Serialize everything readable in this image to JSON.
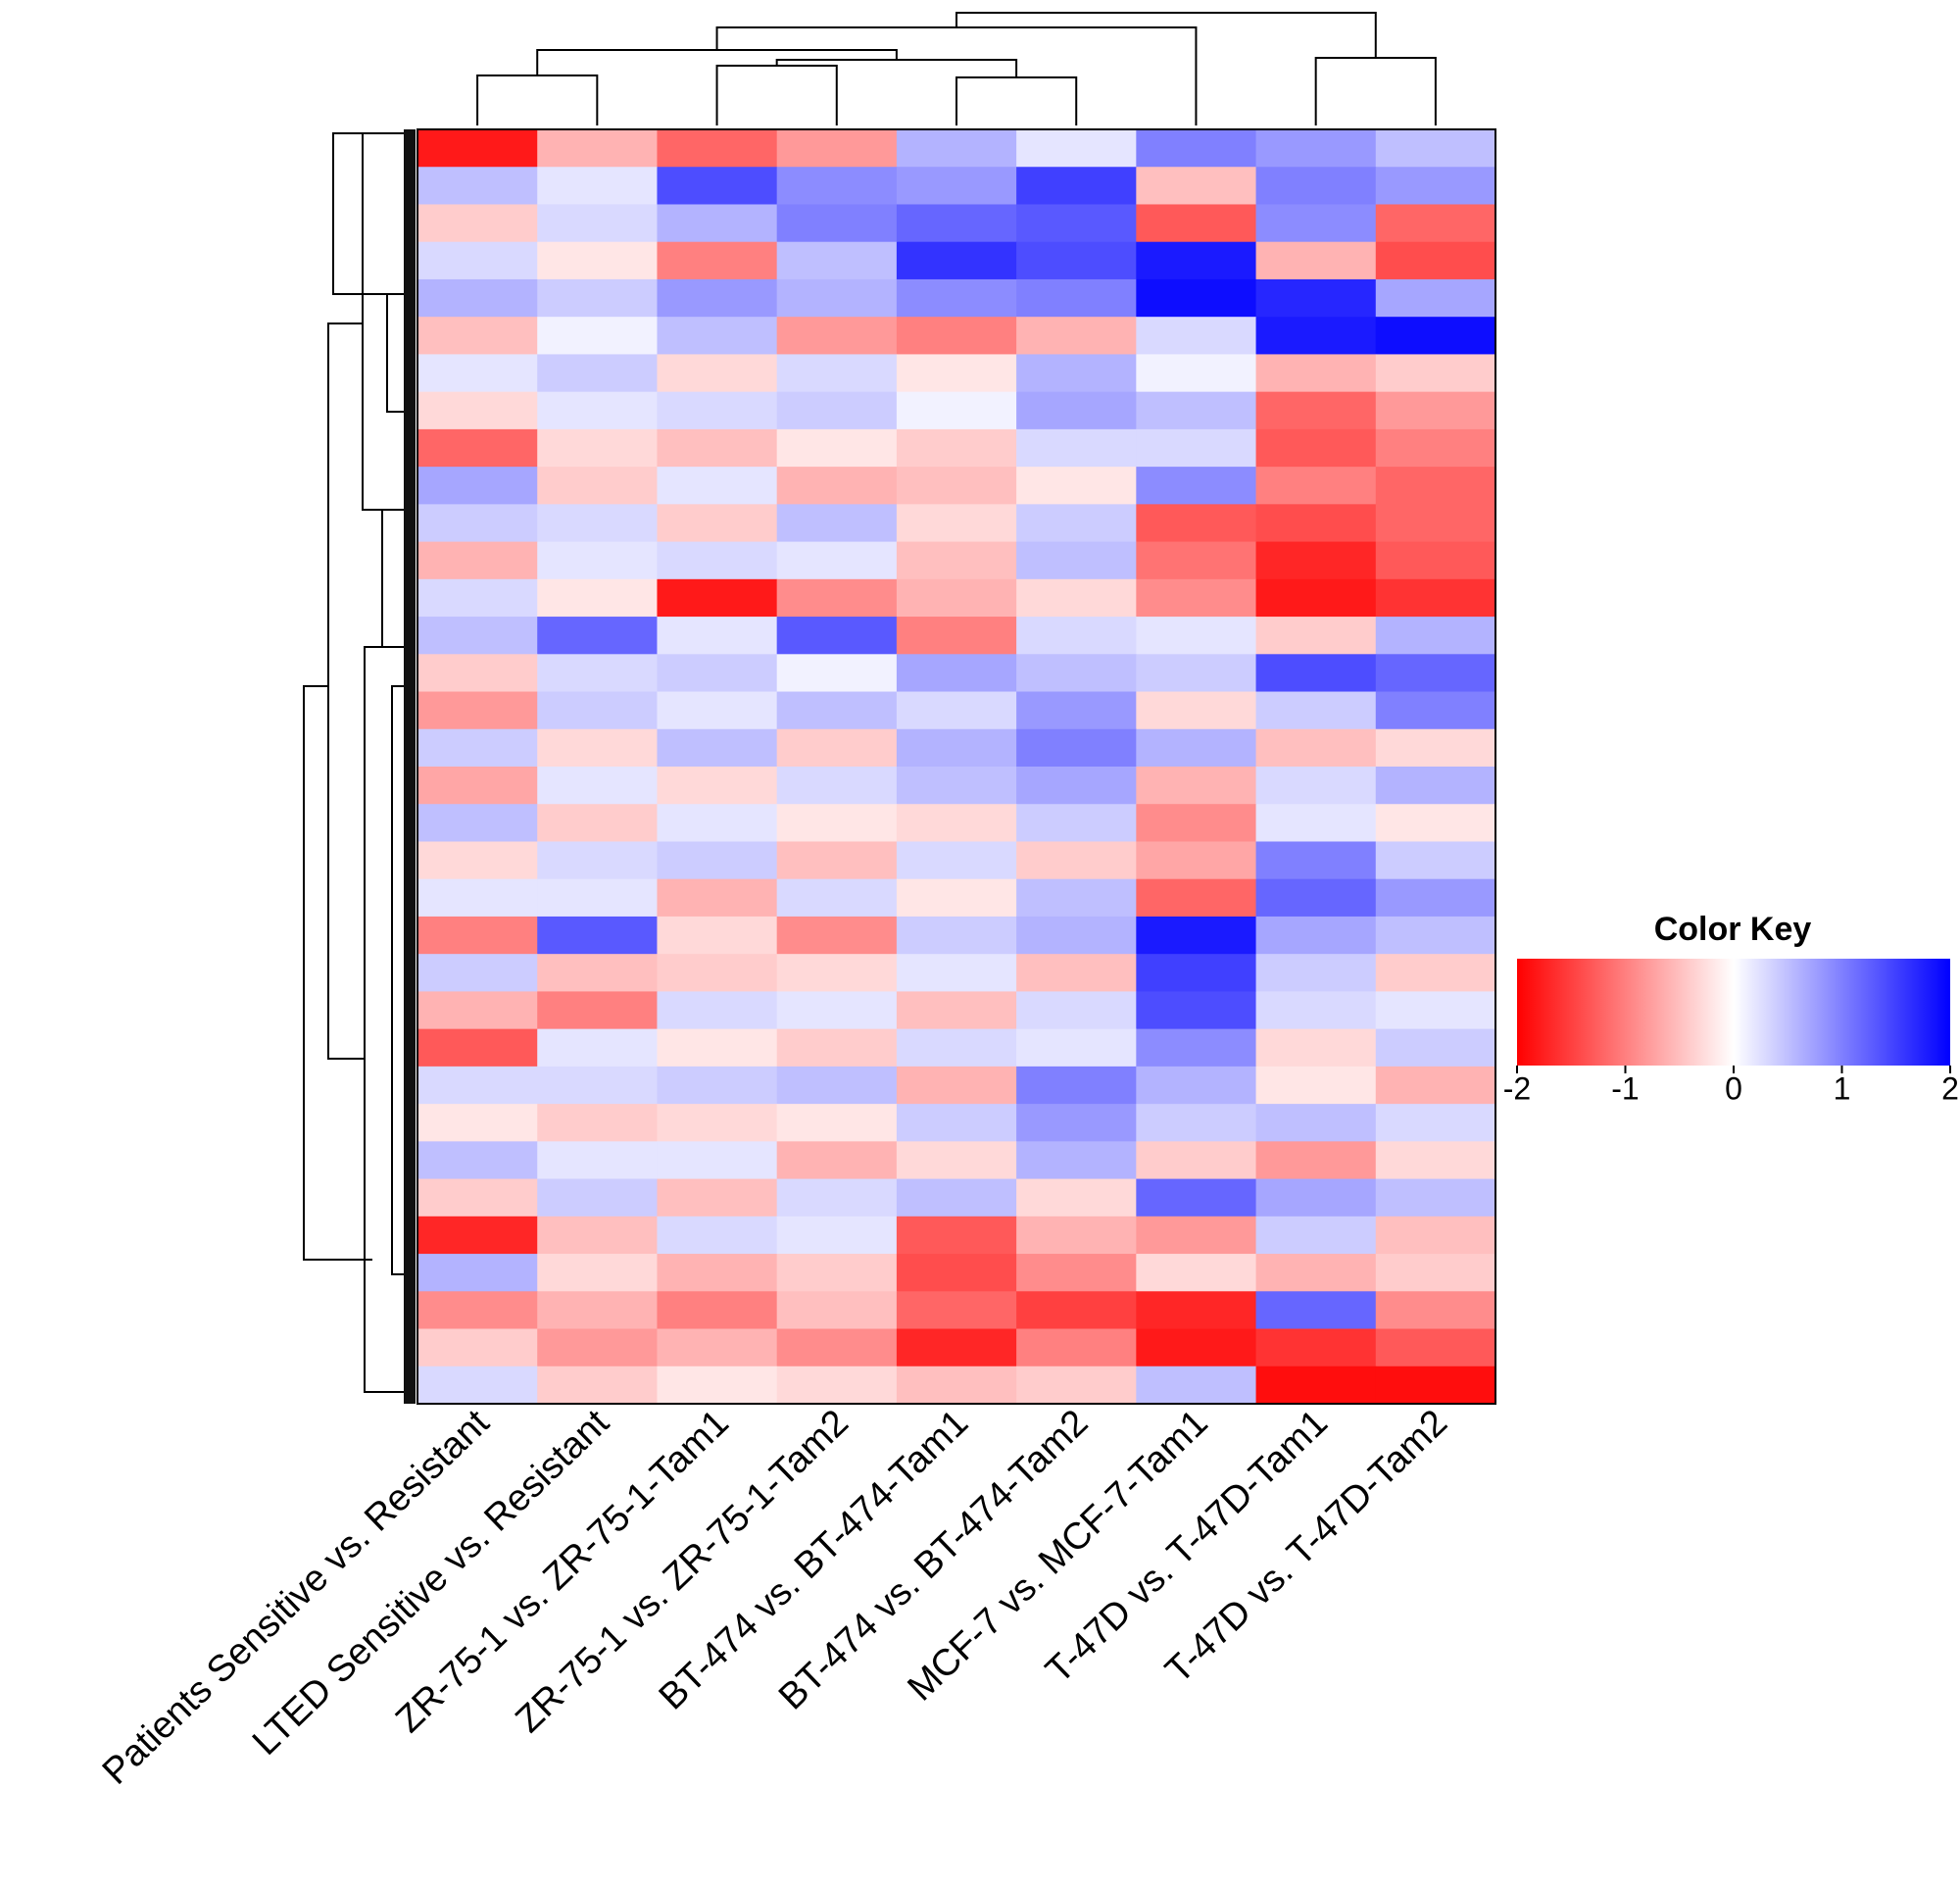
{
  "chart_data": {
    "type": "heatmap",
    "columns": [
      "Patients Sensitive vs. Resistant",
      "LTED Sensitive vs. Resistant",
      "ZR-75-1 vs. ZR-75-1-Tam1",
      "ZR-75-1 vs. ZR-75-1-Tam2",
      "BT-474 vs. BT-474-Tam1",
      "BT-474 vs. BT-474-Tam2",
      "MCF-7 vs. MCF-7-Tam1",
      "T-47D vs. T-47D-Tam1",
      "T-47D vs. T-47D-Tam2"
    ],
    "values": [
      [
        -1.8,
        -0.6,
        -1.2,
        -0.8,
        0.6,
        0.2,
        1.0,
        0.8,
        0.5
      ],
      [
        0.5,
        0.2,
        1.4,
        0.9,
        0.8,
        1.5,
        -0.5,
        1.0,
        0.8
      ],
      [
        -0.4,
        0.3,
        0.6,
        1.0,
        1.2,
        1.3,
        -1.3,
        0.9,
        -1.2
      ],
      [
        0.3,
        -0.2,
        -1.0,
        0.5,
        1.6,
        1.4,
        1.8,
        -0.6,
        -1.4
      ],
      [
        0.6,
        0.4,
        0.8,
        0.6,
        0.9,
        1.0,
        1.9,
        1.7,
        0.7
      ],
      [
        -0.5,
        0.1,
        0.5,
        -0.8,
        -1.0,
        -0.6,
        0.3,
        1.8,
        1.9
      ],
      [
        0.2,
        0.4,
        -0.3,
        0.3,
        -0.2,
        0.6,
        0.1,
        -0.6,
        -0.4
      ],
      [
        -0.3,
        0.2,
        0.3,
        0.4,
        0.1,
        0.7,
        0.5,
        -1.2,
        -0.8
      ],
      [
        -1.2,
        -0.3,
        -0.5,
        -0.2,
        -0.4,
        0.3,
        0.3,
        -1.3,
        -1.0
      ],
      [
        0.7,
        -0.4,
        0.2,
        -0.6,
        -0.5,
        -0.2,
        0.9,
        -1.0,
        -1.2
      ],
      [
        0.4,
        0.3,
        -0.4,
        0.5,
        -0.3,
        0.4,
        -1.3,
        -1.4,
        -1.2
      ],
      [
        -0.6,
        0.2,
        0.3,
        0.2,
        -0.5,
        0.5,
        -1.1,
        -1.7,
        -1.3
      ],
      [
        0.3,
        -0.2,
        -1.8,
        -0.9,
        -0.6,
        -0.3,
        -0.9,
        -1.8,
        -1.6
      ],
      [
        0.5,
        1.2,
        0.2,
        1.3,
        -1.0,
        0.3,
        0.2,
        -0.4,
        0.6
      ],
      [
        -0.4,
        0.3,
        0.4,
        0.1,
        0.7,
        0.5,
        0.4,
        1.4,
        1.2
      ],
      [
        -0.8,
        0.4,
        0.2,
        0.5,
        0.3,
        0.8,
        -0.3,
        0.4,
        1.0
      ],
      [
        0.4,
        -0.3,
        0.5,
        -0.4,
        0.6,
        1.0,
        0.6,
        -0.5,
        -0.3
      ],
      [
        -0.7,
        0.2,
        -0.3,
        0.3,
        0.5,
        0.7,
        -0.6,
        0.3,
        0.6
      ],
      [
        0.5,
        -0.4,
        0.2,
        -0.2,
        -0.3,
        0.4,
        -0.9,
        0.2,
        -0.2
      ],
      [
        -0.3,
        0.3,
        0.4,
        -0.5,
        0.3,
        -0.4,
        -0.7,
        1.0,
        0.4
      ],
      [
        0.2,
        0.2,
        -0.6,
        0.3,
        -0.2,
        0.5,
        -1.2,
        1.2,
        0.8
      ],
      [
        -1.0,
        1.3,
        -0.3,
        -0.9,
        0.4,
        0.6,
        1.8,
        0.7,
        0.5
      ],
      [
        0.4,
        -0.5,
        -0.4,
        -0.3,
        0.2,
        -0.5,
        1.5,
        0.4,
        -0.4
      ],
      [
        -0.6,
        -1.0,
        0.3,
        0.2,
        -0.5,
        0.3,
        1.4,
        0.3,
        0.2
      ],
      [
        -1.3,
        0.2,
        -0.2,
        -0.4,
        0.3,
        0.2,
        0.9,
        -0.3,
        0.4
      ],
      [
        0.3,
        0.3,
        0.4,
        0.5,
        -0.6,
        1.0,
        0.6,
        -0.2,
        -0.6
      ],
      [
        -0.2,
        -0.4,
        -0.3,
        -0.2,
        0.4,
        0.8,
        0.4,
        0.5,
        0.3
      ],
      [
        0.5,
        0.2,
        0.2,
        -0.6,
        -0.3,
        0.6,
        -0.4,
        -0.8,
        -0.3
      ],
      [
        -0.4,
        0.4,
        -0.5,
        0.3,
        0.5,
        -0.3,
        1.2,
        0.7,
        0.5
      ],
      [
        -1.7,
        -0.5,
        0.3,
        0.2,
        -1.3,
        -0.6,
        -0.8,
        0.4,
        -0.5
      ],
      [
        0.6,
        -0.3,
        -0.6,
        -0.4,
        -1.4,
        -0.9,
        -0.3,
        -0.6,
        -0.4
      ],
      [
        -0.9,
        -0.6,
        -1.0,
        -0.5,
        -1.2,
        -1.5,
        -1.7,
        1.2,
        -0.9
      ],
      [
        -0.4,
        -0.8,
        -0.6,
        -0.9,
        -1.7,
        -1.0,
        -1.8,
        -1.6,
        -1.3
      ],
      [
        0.3,
        -0.4,
        -0.2,
        -0.3,
        -0.5,
        -0.4,
        0.5,
        -1.9,
        -1.9
      ]
    ],
    "colormap": [
      "#ff0000",
      "#ffffff",
      "#0000ff"
    ],
    "zlim": [
      -2,
      2
    ],
    "colorbar_title": "Color Key",
    "colorbar_ticks": [
      -2,
      -1,
      0,
      1,
      2
    ]
  }
}
